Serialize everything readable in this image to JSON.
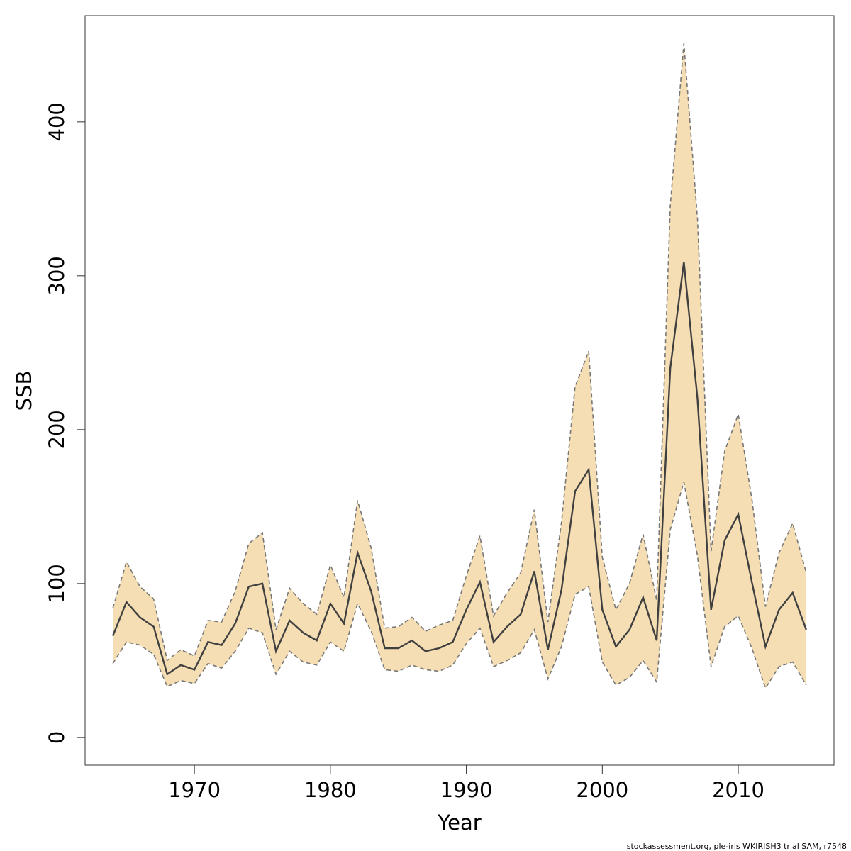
{
  "chart_data": {
    "type": "line",
    "xlabel": "Year",
    "ylabel": "SSB",
    "footnote": "stockassessment.org, ple-iris WKIRISH3 trial SAM, r7548",
    "x": [
      1964,
      1965,
      1966,
      1967,
      1968,
      1969,
      1970,
      1971,
      1972,
      1973,
      1974,
      1975,
      1976,
      1977,
      1978,
      1979,
      1980,
      1981,
      1982,
      1983,
      1984,
      1985,
      1986,
      1987,
      1988,
      1989,
      1990,
      1991,
      1992,
      1993,
      1994,
      1995,
      1996,
      1997,
      1998,
      1999,
      2000,
      2001,
      2002,
      2003,
      2004,
      2005,
      2006,
      2007,
      2008,
      2009,
      2010,
      2011,
      2012,
      2013,
      2014,
      2015
    ],
    "values": [
      66,
      88,
      78,
      72,
      41,
      47,
      44,
      62,
      60,
      74,
      98,
      100,
      56,
      76,
      68,
      63,
      87,
      74,
      120,
      95,
      58,
      58,
      63,
      56,
      58,
      62,
      83,
      101,
      62,
      72,
      80,
      108,
      57,
      96,
      160,
      174,
      83,
      59,
      70,
      91,
      63,
      240,
      309,
      220,
      83,
      128,
      145,
      101,
      59,
      83,
      94,
      70
    ],
    "upper": [
      84,
      114,
      98,
      90,
      50,
      57,
      53,
      76,
      75,
      95,
      126,
      133,
      70,
      97,
      87,
      80,
      112,
      91,
      154,
      123,
      71,
      72,
      78,
      69,
      73,
      76,
      105,
      131,
      79,
      94,
      107,
      148,
      75,
      140,
      228,
      251,
      117,
      83,
      100,
      132,
      89,
      346,
      451,
      337,
      121,
      186,
      210,
      155,
      85,
      120,
      139,
      107
    ],
    "lower": [
      48,
      62,
      60,
      54,
      33,
      37,
      35,
      48,
      45,
      56,
      71,
      68,
      41,
      56,
      49,
      47,
      62,
      56,
      87,
      69,
      44,
      43,
      47,
      44,
      43,
      47,
      61,
      71,
      46,
      50,
      55,
      70,
      38,
      59,
      93,
      98,
      49,
      34,
      39,
      50,
      36,
      135,
      166,
      118,
      46,
      72,
      79,
      58,
      32,
      46,
      49,
      34
    ],
    "color": "#404040",
    "band_color": "#f5deb3",
    "band_line_color": "#777777",
    "xlim": [
      1961.96,
      2017.04
    ],
    "ylim": [
      -18.04,
      469.04
    ],
    "xticks": [
      1970,
      1980,
      1990,
      2000,
      2010
    ],
    "yticks": [
      0,
      100,
      200,
      300,
      400
    ]
  }
}
